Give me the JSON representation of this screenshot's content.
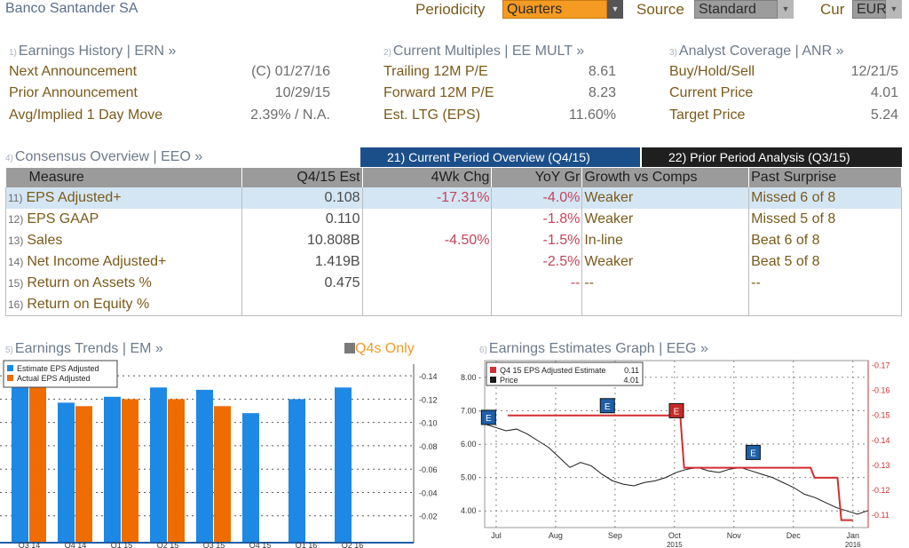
{
  "header": {
    "company": "Banco Santander SA",
    "periodicity_label": "Periodicity",
    "periodicity_value": "Quarters",
    "source_label": "Source",
    "source_value": "Standard",
    "currency_label": "Cur",
    "currency_value": "EUR"
  },
  "earnings_history": {
    "num": "1)",
    "title": "Earnings History | ERN »",
    "rows": [
      {
        "label": "Next Announcement",
        "value": "(C)  01/27/16"
      },
      {
        "label": "Prior Announcement",
        "value": "10/29/15"
      },
      {
        "label": "Avg/Implied 1 Day Move",
        "value": "2.39% / N.A."
      }
    ]
  },
  "current_multiples": {
    "num": "2)",
    "title": "Current Multiples | EE MULT »",
    "rows": [
      {
        "label": "Trailing 12M P/E",
        "value": "8.61"
      },
      {
        "label": "Forward 12M P/E",
        "value": "8.23"
      },
      {
        "label": "Est. LTG (EPS)",
        "value": "11.60%"
      }
    ]
  },
  "analyst_coverage": {
    "num": "3)",
    "title": "Analyst Coverage | ANR »",
    "rows": [
      {
        "label": "Buy/Hold/Sell",
        "value": "12/21/5"
      },
      {
        "label": "Current Price",
        "value": "4.01"
      },
      {
        "label": "Target Price",
        "value": "5.24"
      }
    ]
  },
  "consensus": {
    "num": "4)",
    "title": "Consensus Overview | EEO »",
    "tab_active": "21) Current Period Overview (Q4/15)",
    "tab_inactive": "22) Prior Period Analysis (Q3/15)",
    "columns": [
      "Measure",
      "Q4/15 Est",
      "4Wk Chg",
      "YoY Gr",
      "Growth vs Comps",
      "Past Surprise"
    ],
    "rows": [
      {
        "n": "11)",
        "measure": "EPS Adjusted+",
        "est": "0.108",
        "chg": "-17.31%",
        "yoy": "-4.0%",
        "growth": "Weaker",
        "surprise": "Missed 6 of 8"
      },
      {
        "n": "12)",
        "measure": "EPS GAAP",
        "est": "0.110",
        "chg": "",
        "yoy": "-1.8%",
        "growth": "Weaker",
        "surprise": "Missed 5 of 8"
      },
      {
        "n": "13)",
        "measure": "Sales",
        "est": "10.808B",
        "chg": "-4.50%",
        "yoy": "-1.5%",
        "growth": "In-line",
        "surprise": "Beat 6 of 8"
      },
      {
        "n": "14)",
        "measure": "Net Income Adjusted+",
        "est": "1.419B",
        "chg": "",
        "yoy": "-2.5%",
        "growth": "Weaker",
        "surprise": "Beat 5 of 8"
      },
      {
        "n": "15)",
        "measure": "Return on Assets %",
        "est": "0.475",
        "chg": "",
        "yoy": "--",
        "growth": "--",
        "surprise": "--"
      },
      {
        "n": "16)",
        "measure": "Return on Equity %",
        "est": "",
        "chg": "",
        "yoy": "",
        "growth": "",
        "surprise": ""
      }
    ]
  },
  "earnings_trends": {
    "num": "5)",
    "title": "Earnings Trends | EM »",
    "toggle_label": "Q4s Only"
  },
  "earnings_graph": {
    "num": "6)",
    "title": "Earnings Estimates Graph | EEG »"
  },
  "colors": {
    "estimate": "#1e88e5",
    "actual": "#ef6c00",
    "price": "#1a1a1a",
    "estimate_line": "#d32f2f",
    "tab_active": "#1b4f8a"
  },
  "chart_data": [
    {
      "type": "bar",
      "categories": [
        "Q3 14",
        "Q4 14",
        "Q1 15",
        "Q2 15",
        "Q3 15",
        "Q4 15",
        "Q1 16",
        "Q2 16"
      ],
      "series": [
        {
          "name": "Estimate EPS Adjusted",
          "values": [
            0.15,
            0.117,
            0.122,
            0.13,
            0.128,
            0.108,
            0.12,
            0.13
          ]
        },
        {
          "name": "Actual EPS Adjusted",
          "values": [
            0.15,
            0.114,
            0.12,
            0.12,
            0.114,
            null,
            null,
            null
          ]
        }
      ],
      "yticks": [
        "0.02",
        "0.04",
        "0.06",
        "0.08",
        "0.10",
        "0.12",
        "0.14"
      ],
      "ylim": [
        0,
        0.15
      ],
      "legend": "top-left"
    },
    {
      "type": "line",
      "legend_entries": [
        {
          "name": "Q4 15 EPS Adjusted Estimate",
          "value": "0.11"
        },
        {
          "name": "Price",
          "value": "4.01"
        }
      ],
      "xticks": [
        "Jul",
        "Aug",
        "Sep",
        "Oct",
        "Nov",
        "Dec",
        "Jan"
      ],
      "xticks_sub": {
        "Oct": "2015",
        "Jan": "2016"
      },
      "left_ticks": [
        "4.00",
        "5.00",
        "6.00",
        "7.00",
        "8.00"
      ],
      "right_ticks": [
        "0.11",
        "0.12",
        "0.13",
        "0.14",
        "0.15",
        "0.16",
        "0.17"
      ],
      "left_ylim": [
        3.5,
        8.5
      ],
      "right_ylim": [
        0.105,
        0.172
      ],
      "price": [
        6.6,
        6.5,
        6.4,
        6.45,
        6.3,
        6.1,
        5.9,
        5.6,
        5.3,
        5.45,
        5.35,
        5.1,
        4.9,
        4.8,
        4.75,
        4.85,
        4.9,
        5.0,
        5.15,
        5.25,
        5.3,
        5.2,
        5.15,
        5.25,
        5.3,
        5.2,
        5.1,
        5.0,
        4.85,
        4.7,
        4.5,
        4.4,
        4.25,
        4.1,
        4.0,
        3.9,
        4.01
      ],
      "estimate_steps": [
        {
          "x": 0.06,
          "y": 0.15
        },
        {
          "x": 0.51,
          "y": 0.15
        },
        {
          "x": 0.52,
          "y": 0.129
        },
        {
          "x": 0.85,
          "y": 0.129
        },
        {
          "x": 0.86,
          "y": 0.125
        },
        {
          "x": 0.92,
          "y": 0.125
        },
        {
          "x": 0.93,
          "y": 0.108
        },
        {
          "x": 0.96,
          "y": 0.108
        }
      ],
      "markers": [
        {
          "label": "E",
          "kind": "blue",
          "x": 0.01,
          "y": 6.8
        },
        {
          "label": "E",
          "kind": "blue",
          "x": 0.32,
          "y": 7.15
        },
        {
          "label": "E",
          "kind": "red",
          "x": 0.5,
          "y": 7.0
        },
        {
          "label": "E",
          "kind": "blue",
          "x": 0.7,
          "y": 5.75
        }
      ]
    }
  ]
}
